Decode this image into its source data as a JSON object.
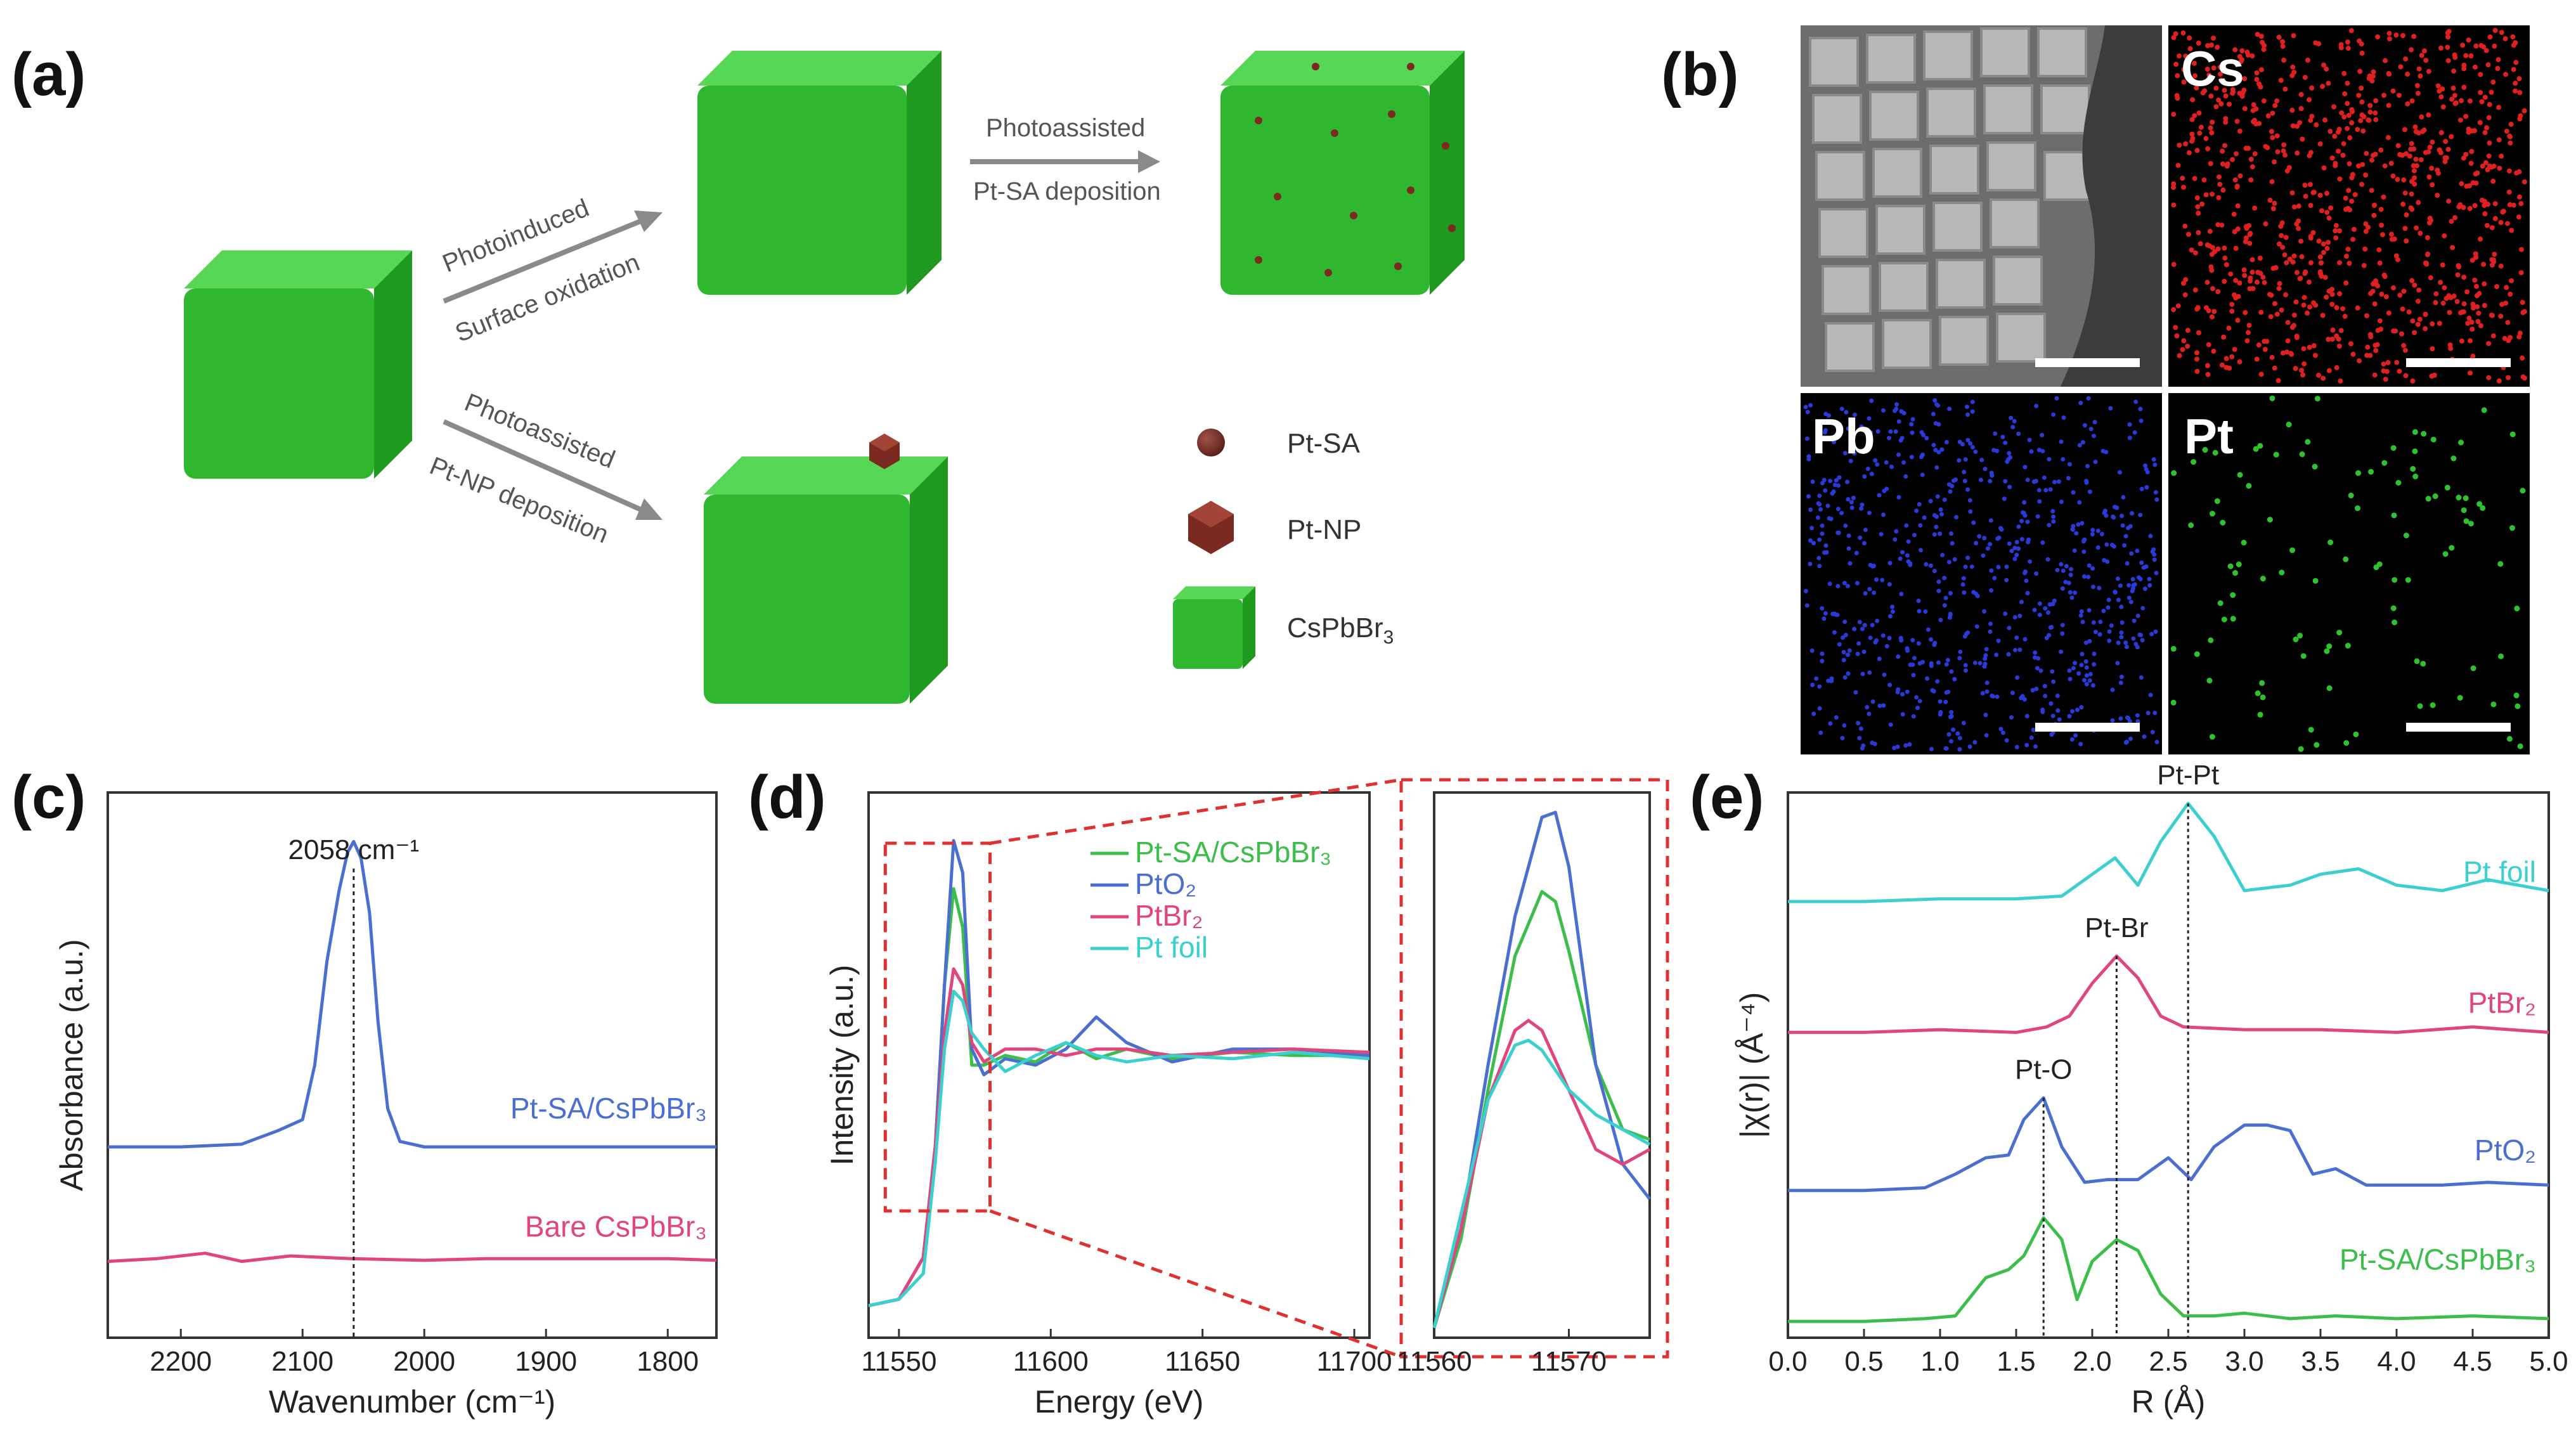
{
  "panel_labels": {
    "a": "(a)",
    "b": "(b)",
    "c": "(c)",
    "d": "(d)",
    "e": "(e)"
  },
  "scheme": {
    "top_arrow": {
      "line1": "Photoinduced",
      "line2": "Surface oxidation"
    },
    "right_arrow": {
      "line1": "Photoassisted",
      "line2": "Pt-SA deposition"
    },
    "bottom_arrow": {
      "line1": "Photoassisted",
      "line2": "Pt-NP deposition"
    },
    "legend": {
      "sa": "Pt-SA",
      "np": "Pt-NP",
      "cube_main": "CsPbBr",
      "cube_sub": "3"
    }
  },
  "em": {
    "cs": "Cs",
    "pb": "Pb",
    "pt": "Pt"
  },
  "colors": {
    "blue": "#4a6fd1",
    "pink": "#e0457b",
    "green": "#3cbf4a",
    "cyan": "#3ccfcf",
    "cube": "#2fb82f",
    "dash_red": "#e03030"
  },
  "chart_data": [
    {
      "id": "c",
      "type": "line",
      "title": "",
      "xlabel": "Wavenumber (cm⁻¹)",
      "ylabel": "Absorbance (a.u.)",
      "xlim": [
        2260,
        1760
      ],
      "ylim": [
        0,
        10
      ],
      "xticks": [
        2200,
        2100,
        2000,
        1900,
        1800
      ],
      "peak_annotation": {
        "x": 2058,
        "text": "2058 cm⁻¹"
      },
      "series": [
        {
          "name": "Pt-SA/CsPbBr₃",
          "color": "#4a6fd1",
          "x": [
            2260,
            2200,
            2150,
            2120,
            2100,
            2090,
            2080,
            2070,
            2063,
            2058,
            2052,
            2045,
            2038,
            2030,
            2020,
            2000,
            1950,
            1900,
            1850,
            1800,
            1760
          ],
          "values": [
            3.5,
            3.5,
            3.55,
            3.8,
            4.0,
            5.0,
            6.9,
            8.2,
            8.9,
            9.1,
            8.8,
            7.8,
            5.8,
            4.2,
            3.6,
            3.5,
            3.5,
            3.5,
            3.5,
            3.5,
            3.5
          ]
        },
        {
          "name": "Bare CsPbBr₃",
          "color": "#e0457b",
          "x": [
            2260,
            2220,
            2180,
            2150,
            2110,
            2060,
            2000,
            1950,
            1900,
            1850,
            1800,
            1760
          ],
          "values": [
            1.4,
            1.45,
            1.55,
            1.4,
            1.5,
            1.45,
            1.42,
            1.45,
            1.45,
            1.45,
            1.45,
            1.42
          ]
        }
      ]
    },
    {
      "id": "d_main",
      "type": "line",
      "xlabel": "Energy (eV)",
      "ylabel": "Intensity (a.u.)",
      "xlim": [
        11540,
        11705
      ],
      "ylim": [
        0,
        1.7
      ],
      "xticks": [
        11550,
        11600,
        11650,
        11700
      ],
      "series": [
        {
          "name": "Pt-SA/CsPbBr₃",
          "color": "#3cbf4a",
          "x": [
            11540,
            11550,
            11558,
            11562,
            11565,
            11568,
            11571,
            11574,
            11578,
            11585,
            11595,
            11605,
            11615,
            11625,
            11640,
            11660,
            11680,
            11705
          ],
          "values": [
            0.1,
            0.12,
            0.25,
            0.6,
            1.1,
            1.4,
            1.28,
            0.85,
            0.85,
            0.88,
            0.86,
            0.92,
            0.87,
            0.9,
            0.87,
            0.89,
            0.88,
            0.88
          ]
        },
        {
          "name": "PtO₂",
          "color": "#4a6fd1",
          "x": [
            11540,
            11550,
            11558,
            11562,
            11565,
            11568,
            11571,
            11574,
            11578,
            11585,
            11595,
            11605,
            11615,
            11625,
            11640,
            11660,
            11680,
            11705
          ],
          "values": [
            0.1,
            0.12,
            0.25,
            0.6,
            1.1,
            1.55,
            1.45,
            0.9,
            0.82,
            0.87,
            0.85,
            0.9,
            1.0,
            0.92,
            0.86,
            0.9,
            0.9,
            0.88
          ]
        },
        {
          "name": "PtBr₂",
          "color": "#e0457b",
          "x": [
            11540,
            11550,
            11558,
            11562,
            11565,
            11568,
            11571,
            11574,
            11578,
            11585,
            11595,
            11605,
            11615,
            11625,
            11640,
            11660,
            11680,
            11705
          ],
          "values": [
            0.1,
            0.12,
            0.25,
            0.6,
            0.95,
            1.15,
            1.1,
            0.92,
            0.86,
            0.9,
            0.9,
            0.88,
            0.9,
            0.9,
            0.88,
            0.89,
            0.9,
            0.89
          ]
        },
        {
          "name": "Pt foil",
          "color": "#3ccfcf",
          "x": [
            11540,
            11550,
            11558,
            11562,
            11565,
            11568,
            11571,
            11574,
            11578,
            11585,
            11595,
            11605,
            11615,
            11625,
            11640,
            11660,
            11680,
            11705
          ],
          "values": [
            0.1,
            0.12,
            0.2,
            0.55,
            0.9,
            1.08,
            1.05,
            0.95,
            0.9,
            0.83,
            0.88,
            0.92,
            0.88,
            0.86,
            0.88,
            0.87,
            0.89,
            0.87
          ]
        }
      ]
    },
    {
      "id": "d_inset",
      "type": "line",
      "xlim": [
        11560,
        11576
      ],
      "ylim": [
        0.5,
        1.6
      ],
      "xticks": [
        11560,
        11570
      ],
      "series": [
        {
          "name": "Pt-SA/CsPbBr₃",
          "color": "#3cbf4a",
          "x": [
            11560,
            11562,
            11564,
            11566,
            11568,
            11569,
            11570,
            11572,
            11574,
            11576
          ],
          "values": [
            0.52,
            0.7,
            1.0,
            1.27,
            1.4,
            1.38,
            1.28,
            1.05,
            0.92,
            0.9
          ]
        },
        {
          "name": "PtO₂",
          "color": "#4a6fd1",
          "x": [
            11560,
            11562,
            11564,
            11566,
            11568,
            11569,
            11570,
            11572,
            11574,
            11576
          ],
          "values": [
            0.52,
            0.72,
            1.05,
            1.35,
            1.55,
            1.56,
            1.45,
            1.05,
            0.85,
            0.78
          ]
        },
        {
          "name": "PtBr₂",
          "color": "#e0457b",
          "x": [
            11560,
            11562,
            11564,
            11566,
            11567,
            11568,
            11570,
            11572,
            11574,
            11576
          ],
          "values": [
            0.52,
            0.72,
            0.98,
            1.12,
            1.14,
            1.12,
            1.0,
            0.88,
            0.85,
            0.88
          ]
        },
        {
          "name": "Pt foil",
          "color": "#3ccfcf",
          "x": [
            11560,
            11562,
            11564,
            11566,
            11567,
            11568,
            11570,
            11572,
            11574,
            11576
          ],
          "values": [
            0.52,
            0.75,
            0.98,
            1.09,
            1.1,
            1.08,
            1.0,
            0.95,
            0.92,
            0.89
          ]
        }
      ]
    },
    {
      "id": "e",
      "type": "line",
      "xlabel": "R (Å)",
      "ylabel": "|χ(r)| (Å⁻⁴)",
      "xlim": [
        0,
        5
      ],
      "ylim": [
        0,
        10
      ],
      "xticks": [
        0.0,
        0.5,
        1.0,
        1.5,
        2.0,
        2.5,
        3.0,
        3.5,
        4.0,
        4.5,
        5.0
      ],
      "xtick_labels": [
        "0.0",
        "0.5",
        "1.0",
        "1.5",
        "2.0",
        "2.5",
        "3.0",
        "3.5",
        "4.0",
        "4.5",
        "5.0"
      ],
      "vlines": [
        {
          "x": 1.68,
          "label": "Pt-O"
        },
        {
          "x": 2.16,
          "label": "Pt-Br"
        },
        {
          "x": 2.63,
          "label": "Pt-Pt"
        }
      ],
      "series": [
        {
          "name": "Pt foil",
          "color": "#3ccfcf",
          "x": [
            0,
            0.5,
            1.0,
            1.5,
            1.8,
            2.0,
            2.15,
            2.3,
            2.45,
            2.63,
            2.8,
            3.0,
            3.3,
            3.5,
            3.75,
            4.0,
            4.3,
            4.6,
            5.0
          ],
          "values": [
            8.0,
            8.0,
            8.05,
            8.05,
            8.1,
            8.5,
            8.8,
            8.3,
            9.1,
            9.8,
            9.2,
            8.2,
            8.3,
            8.5,
            8.6,
            8.3,
            8.2,
            8.4,
            8.2
          ]
        },
        {
          "name": "PtBr₂",
          "color": "#e0457b",
          "x": [
            0,
            0.5,
            1.0,
            1.5,
            1.7,
            1.85,
            2.0,
            2.16,
            2.3,
            2.45,
            2.6,
            3.0,
            3.5,
            4.0,
            4.5,
            5.0
          ],
          "values": [
            5.6,
            5.6,
            5.65,
            5.6,
            5.7,
            5.9,
            6.5,
            7.0,
            6.6,
            5.9,
            5.7,
            5.65,
            5.65,
            5.6,
            5.7,
            5.6
          ]
        },
        {
          "name": "PtO₂",
          "color": "#4a6fd1",
          "x": [
            0,
            0.5,
            0.9,
            1.1,
            1.3,
            1.45,
            1.55,
            1.68,
            1.8,
            1.95,
            2.1,
            2.3,
            2.5,
            2.65,
            2.8,
            3.0,
            3.15,
            3.3,
            3.45,
            3.6,
            3.8,
            4.0,
            4.3,
            4.6,
            5.0
          ],
          "values": [
            2.7,
            2.7,
            2.75,
            3.0,
            3.3,
            3.35,
            4.0,
            4.4,
            3.5,
            2.85,
            2.9,
            2.9,
            3.3,
            2.9,
            3.5,
            3.9,
            3.9,
            3.8,
            3.0,
            3.1,
            2.8,
            2.8,
            2.8,
            2.85,
            2.8
          ]
        },
        {
          "name": "Pt-SA/CsPbBr₃",
          "color": "#3cbf4a",
          "x": [
            0,
            0.5,
            0.9,
            1.1,
            1.3,
            1.45,
            1.55,
            1.68,
            1.8,
            1.9,
            2.0,
            2.16,
            2.3,
            2.45,
            2.6,
            2.8,
            3.0,
            3.3,
            3.6,
            4.0,
            4.5,
            5.0
          ],
          "values": [
            0.3,
            0.3,
            0.35,
            0.4,
            1.1,
            1.25,
            1.5,
            2.2,
            1.8,
            0.7,
            1.4,
            1.8,
            1.6,
            0.8,
            0.4,
            0.4,
            0.45,
            0.35,
            0.4,
            0.35,
            0.4,
            0.35
          ]
        }
      ]
    }
  ]
}
